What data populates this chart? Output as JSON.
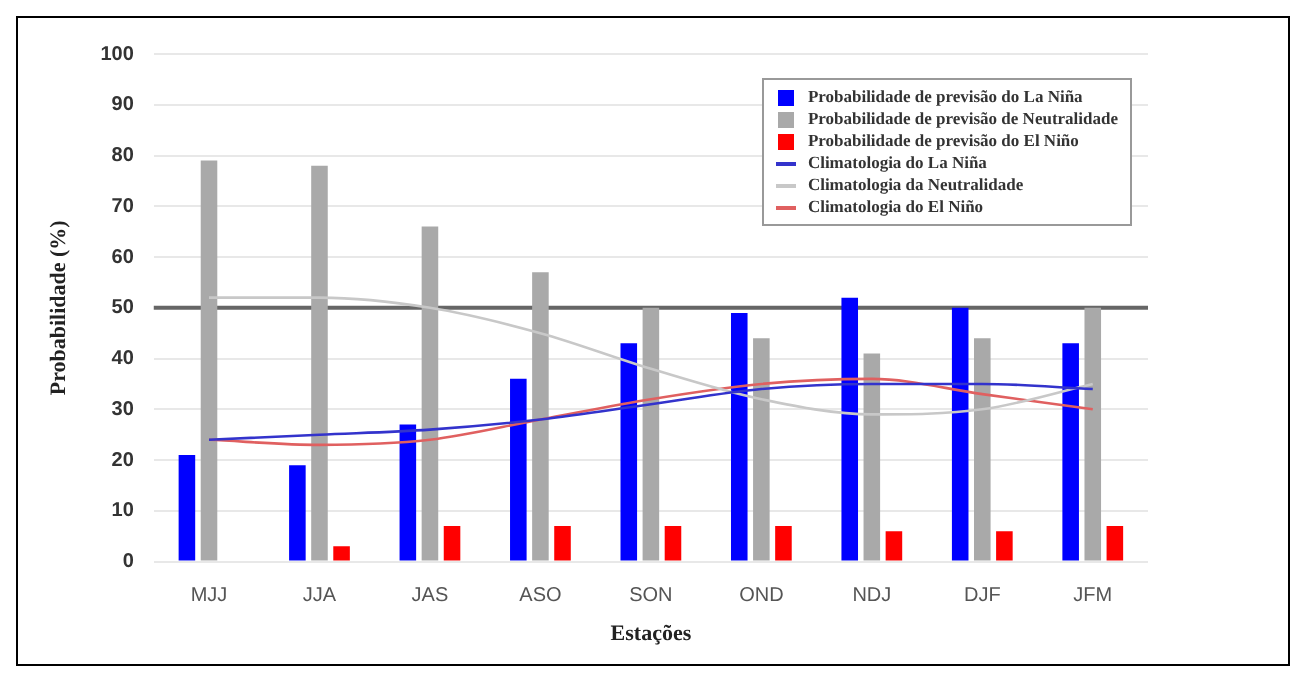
{
  "chart_data": {
    "type": "bar",
    "xlabel": "Estações",
    "ylabel": "Probabilidade (%)",
    "categories": [
      "MJJ",
      "JJA",
      "JAS",
      "ASO",
      "SON",
      "OND",
      "NDJ",
      "DJF",
      "JFM"
    ],
    "series": [
      {
        "name": "Probabilidade de previsão do La Niña",
        "color": "#0000ff",
        "values": [
          21,
          19,
          27,
          36,
          43,
          49,
          52,
          50,
          43
        ]
      },
      {
        "name": "Probabilidade de previsão de Neutralidade",
        "color": "#a9a9a9",
        "values": [
          79,
          78,
          66,
          57,
          50,
          44,
          41,
          44,
          50
        ]
      },
      {
        "name": "Probabilidade de previsão do El Niño",
        "color": "#ff0000",
        "values": [
          0,
          3,
          7,
          7,
          7,
          7,
          6,
          6,
          7
        ]
      },
      {
        "name": "Climatologia do La Niña",
        "type": "line",
        "color": "#3333cc",
        "values": [
          24,
          25,
          26,
          28,
          31,
          34,
          35,
          35,
          34
        ]
      },
      {
        "name": "Climatologia da Neutralidade",
        "type": "line",
        "color": "#c8c8c8",
        "values": [
          52,
          52,
          50,
          45,
          38,
          32,
          29,
          30,
          35
        ]
      },
      {
        "name": "Climatologia do El Niño",
        "type": "line",
        "color": "#e06060",
        "values": [
          24,
          23,
          24,
          28,
          32,
          35,
          36,
          33,
          30
        ]
      }
    ],
    "ylim": [
      0,
      100
    ],
    "yticks": [
      0,
      10,
      20,
      30,
      40,
      50,
      60,
      70,
      80,
      90,
      100
    ],
    "ref_lines": [
      {
        "axis": "y",
        "value": 50,
        "color": "#666666"
      }
    ],
    "grid": "y",
    "legend": "top right",
    "marker": "none"
  }
}
